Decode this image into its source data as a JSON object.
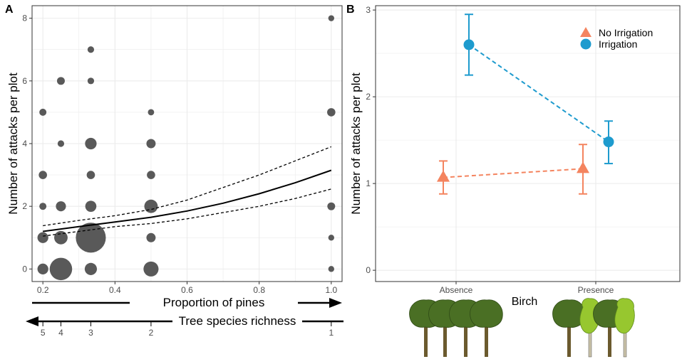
{
  "chart_data": [
    {
      "panel": "A",
      "type": "scatter",
      "xlabel": "Proportion of pines",
      "ylabel": "Number of attacks per plot",
      "xlim": [
        0.17,
        1.03
      ],
      "ylim": [
        -0.4,
        8.4
      ],
      "x_ticks": [
        0.2,
        0.4,
        0.6,
        0.8,
        1.0
      ],
      "x_tick_labels": [
        "0.2",
        "0.4",
        "0.6",
        "0.8",
        "1.0"
      ],
      "y_ticks": [
        0,
        2,
        4,
        6,
        8
      ],
      "y_tick_labels": [
        "0",
        "2",
        "4",
        "6",
        "8"
      ],
      "grid": true,
      "points_note": "bubble size = number of plots",
      "points": [
        {
          "x": 0.2,
          "y": 0,
          "n": 3
        },
        {
          "x": 0.2,
          "y": 1,
          "n": 3
        },
        {
          "x": 0.2,
          "y": 2,
          "n": 1
        },
        {
          "x": 0.2,
          "y": 3,
          "n": 1.5
        },
        {
          "x": 0.2,
          "y": 5,
          "n": 1
        },
        {
          "x": 0.25,
          "y": 0,
          "n": 16
        },
        {
          "x": 0.25,
          "y": 1,
          "n": 5
        },
        {
          "x": 0.25,
          "y": 2,
          "n": 2.5
        },
        {
          "x": 0.25,
          "y": 4,
          "n": 0.8
        },
        {
          "x": 0.25,
          "y": 6,
          "n": 1.3
        },
        {
          "x": 0.333,
          "y": 0,
          "n": 4
        },
        {
          "x": 0.333,
          "y": 1,
          "n": 30
        },
        {
          "x": 0.333,
          "y": 2,
          "n": 3.2
        },
        {
          "x": 0.333,
          "y": 3,
          "n": 1.5
        },
        {
          "x": 0.333,
          "y": 4,
          "n": 3.5
        },
        {
          "x": 0.333,
          "y": 6,
          "n": 0.8
        },
        {
          "x": 0.333,
          "y": 7,
          "n": 0.8
        },
        {
          "x": 0.5,
          "y": 0,
          "n": 6.5
        },
        {
          "x": 0.5,
          "y": 1,
          "n": 2
        },
        {
          "x": 0.5,
          "y": 2,
          "n": 5
        },
        {
          "x": 0.5,
          "y": 3,
          "n": 1.5
        },
        {
          "x": 0.5,
          "y": 4,
          "n": 2
        },
        {
          "x": 0.5,
          "y": 5,
          "n": 0.7
        },
        {
          "x": 1.0,
          "y": 0,
          "n": 0.6
        },
        {
          "x": 1.0,
          "y": 1,
          "n": 0.6
        },
        {
          "x": 1.0,
          "y": 2,
          "n": 1.3
        },
        {
          "x": 1.0,
          "y": 5,
          "n": 1.5
        },
        {
          "x": 1.0,
          "y": 8,
          "n": 0.6
        }
      ],
      "fit": {
        "x": [
          0.2,
          0.3,
          0.4,
          0.5,
          0.6,
          0.7,
          0.8,
          0.9,
          1.0
        ],
        "y": [
          1.2,
          1.35,
          1.5,
          1.65,
          1.85,
          2.1,
          2.4,
          2.75,
          3.15
        ],
        "lower": [
          1.05,
          1.2,
          1.35,
          1.45,
          1.6,
          1.8,
          2.0,
          2.25,
          2.55
        ],
        "upper": [
          1.38,
          1.55,
          1.7,
          1.9,
          2.2,
          2.6,
          3.0,
          3.45,
          3.9
        ]
      },
      "arrow_axes": [
        {
          "label": "Proportion of pines",
          "direction": "right"
        },
        {
          "label": "Tree species richness",
          "direction": "left",
          "ticks": [
            {
              "x": 0.2,
              "label": "5"
            },
            {
              "x": 0.25,
              "label": "4"
            },
            {
              "x": 0.333,
              "label": "3"
            },
            {
              "x": 0.5,
              "label": "2"
            },
            {
              "x": 1.0,
              "label": "1"
            }
          ]
        }
      ]
    },
    {
      "panel": "B",
      "type": "scatter",
      "xlabel": "Birch",
      "ylabel": "Number of attacks per plot",
      "categories": [
        "Absence",
        "Presence"
      ],
      "ylim": [
        -0.13,
        3.05
      ],
      "y_ticks": [
        0,
        1,
        2,
        3
      ],
      "y_tick_labels": [
        "0",
        "1",
        "2",
        "3"
      ],
      "grid": true,
      "legend_position": "top-right",
      "series": [
        {
          "name": "No Irrigation",
          "marker": "triangle",
          "color": "#F4845F",
          "values": [
            1.07,
            1.17
          ],
          "lower": [
            0.88,
            0.88
          ],
          "upper": [
            1.26,
            1.45
          ]
        },
        {
          "name": "Irrigation",
          "marker": "circle",
          "color": "#1E9BCE",
          "values": [
            2.6,
            1.48
          ],
          "lower": [
            2.25,
            1.23
          ],
          "upper": [
            2.95,
            1.72
          ]
        }
      ]
    }
  ],
  "colors": {
    "bubble": "#595959",
    "grid": "#ebebeb",
    "tree_dark": "#4a6f24",
    "tree_light": "#97c72f",
    "trunk_dark": "#6b5a2e",
    "trunk_light": "#c9c2a8"
  }
}
